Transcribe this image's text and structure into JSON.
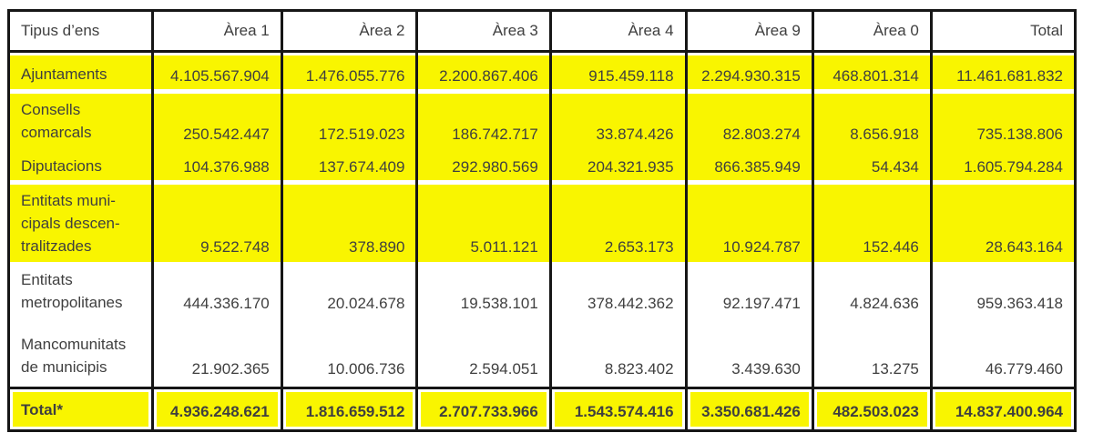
{
  "page": {
    "background": "#ffffff"
  },
  "colors": {
    "highlight_yellow": "#f9f500",
    "border_black": "#161616",
    "text_gray": "#3f3f3f"
  },
  "table": {
    "columns": [
      "Tipus d’ens",
      "Àrea 1",
      "Àrea 2",
      "Àrea 3",
      "Àrea 4",
      "Àrea 9",
      "Àrea 0",
      "Total"
    ],
    "rows": [
      {
        "name": "ajuntaments",
        "label": "Ajuntaments",
        "values": [
          "4.105.567.904",
          "1.476.055.776",
          "2.200.867.406",
          "915.459.118",
          "2.294.930.315",
          "468.801.314",
          "11.461.681.832"
        ],
        "highlighted": true,
        "bold": false
      },
      {
        "name": "consells-comarcals",
        "label": "Consells\ncomarcals",
        "values": [
          "250.542.447",
          "172.519.023",
          "186.742.717",
          "33.874.426",
          "82.803.274",
          "8.656.918",
          "735.138.806"
        ],
        "highlighted": true,
        "bold": false
      },
      {
        "name": "diputacions",
        "label": "Diputacions",
        "values": [
          "104.376.988",
          "137.674.409",
          "292.980.569",
          "204.321.935",
          "866.385.949",
          "54.434",
          "1.605.794.284"
        ],
        "highlighted": true,
        "bold": false
      },
      {
        "name": "entitats-municipals-descentralitzades",
        "label": "Entitats muni-\ncipals descen-\ntralitzades",
        "values": [
          "9.522.748",
          "378.890",
          "5.011.121",
          "2.653.173",
          "10.924.787",
          "152.446",
          "28.643.164"
        ],
        "highlighted": true,
        "bold": false
      },
      {
        "name": "entitats-metropolitanes",
        "label": "Entitats\nmetropolitanes",
        "values": [
          "444.336.170",
          "20.024.678",
          "19.538.101",
          "378.442.362",
          "92.197.471",
          "4.824.636",
          "959.363.418"
        ],
        "highlighted": false,
        "bold": false
      },
      {
        "name": "mancomunitats-de-municipis",
        "label": "Mancomunitats\nde municipis",
        "values": [
          "21.902.365",
          "10.006.736",
          "2.594.051",
          "8.823.402",
          "3.439.630",
          "13.275",
          "46.779.460"
        ],
        "highlighted": false,
        "bold": false
      },
      {
        "name": "total",
        "label": "Total*",
        "values": [
          "4.936.248.621",
          "1.816.659.512",
          "2.707.733.966",
          "1.543.574.416",
          "3.350.681.426",
          "482.503.023",
          "14.837.400.964"
        ],
        "highlighted": true,
        "bold": true
      }
    ]
  }
}
